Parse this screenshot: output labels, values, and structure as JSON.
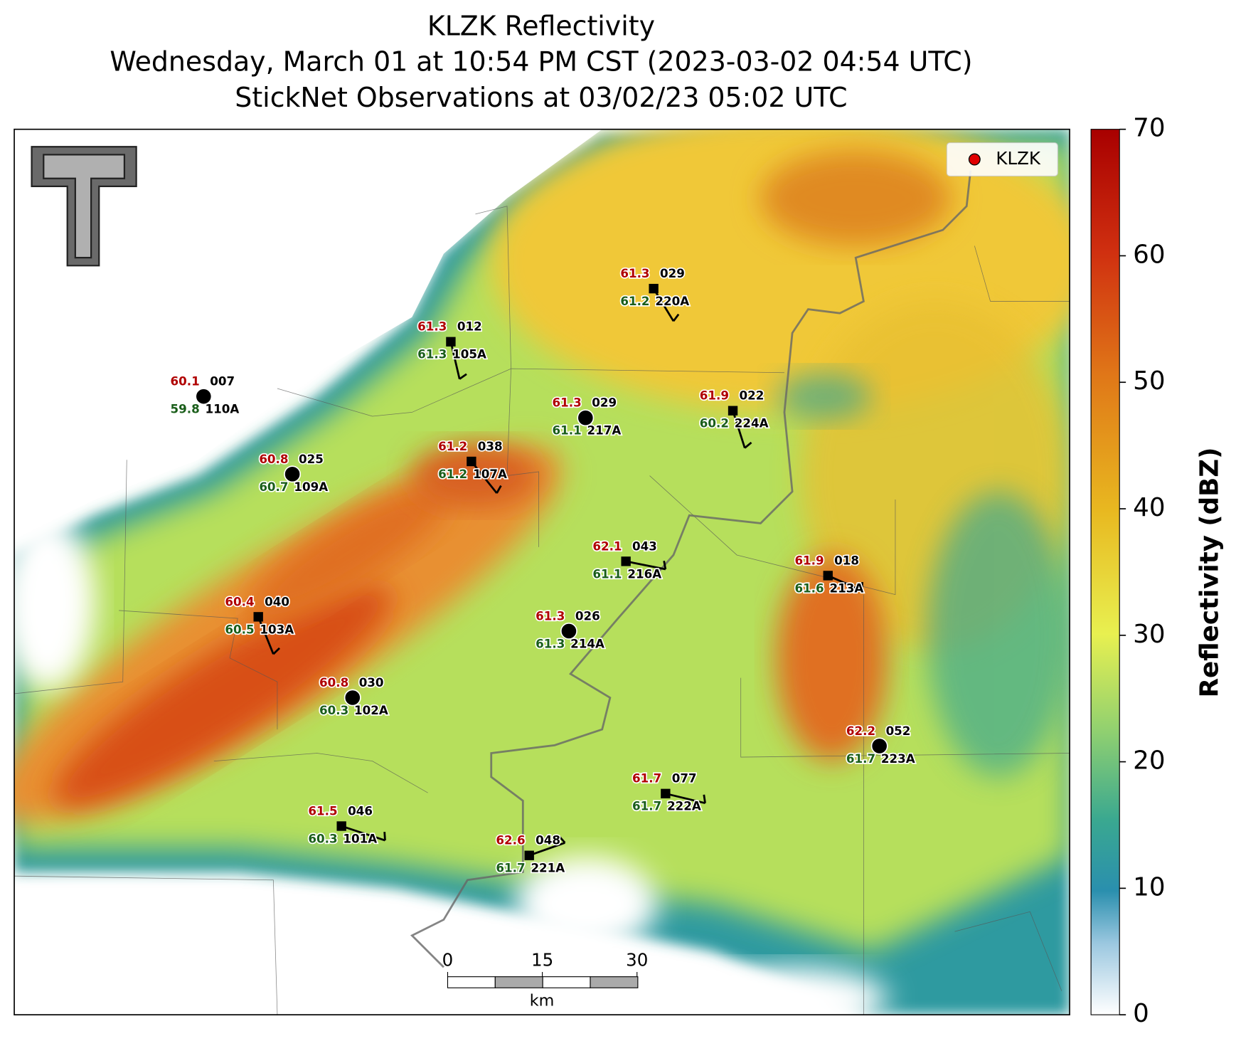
{
  "title": [
    "KLZK Reflectivity",
    "Wednesday, March 01 at 10:54 PM CST (2023-03-02 04:54 UTC)",
    "StickNet Observations at 03/02/23 05:02 UTC"
  ],
  "legend": {
    "label": "KLZK",
    "color": "#e00000"
  },
  "colorbar": {
    "label": "Reflectivity (dBZ)",
    "lim": [
      0,
      70
    ],
    "ticks": [
      0,
      10,
      20,
      30,
      40,
      50,
      60,
      70
    ]
  },
  "scale_bar": {
    "ticks": [
      0,
      15,
      30
    ],
    "unit": "km"
  },
  "stations": [
    {
      "id": "110A",
      "temperature": 60.1,
      "dewpoint": 59.8,
      "wind": "007"
    },
    {
      "id": "109A",
      "temperature": 60.8,
      "dewpoint": 60.7,
      "wind": "025"
    },
    {
      "id": "105A",
      "temperature": 61.3,
      "dewpoint": 61.3,
      "wind": "012"
    },
    {
      "id": "220A",
      "temperature": 61.3,
      "dewpoint": 61.2,
      "wind": "029"
    },
    {
      "id": "217A",
      "temperature": 61.3,
      "dewpoint": 61.1,
      "wind": "029"
    },
    {
      "id": "224A",
      "temperature": 61.9,
      "dewpoint": 60.2,
      "wind": "022"
    },
    {
      "id": "107A",
      "temperature": 61.2,
      "dewpoint": 61.2,
      "wind": "038"
    },
    {
      "id": "216A",
      "temperature": 62.1,
      "dewpoint": 61.1,
      "wind": "043"
    },
    {
      "id": "213A",
      "temperature": 61.9,
      "dewpoint": 61.6,
      "wind": "018"
    },
    {
      "id": "103A",
      "temperature": 60.4,
      "dewpoint": 60.5,
      "wind": "040"
    },
    {
      "id": "214A",
      "temperature": 61.3,
      "dewpoint": 61.3,
      "wind": "026"
    },
    {
      "id": "102A",
      "temperature": 60.8,
      "dewpoint": 60.3,
      "wind": "030"
    },
    {
      "id": "223A",
      "temperature": 62.2,
      "dewpoint": 61.7,
      "wind": "052"
    },
    {
      "id": "222A",
      "temperature": 61.7,
      "dewpoint": 61.7,
      "wind": "077"
    },
    {
      "id": "101A",
      "temperature": 61.5,
      "dewpoint": 60.3,
      "wind": "046"
    },
    {
      "id": "221A",
      "temperature": 62.6,
      "dewpoint": 61.7,
      "wind": "048"
    }
  ]
}
